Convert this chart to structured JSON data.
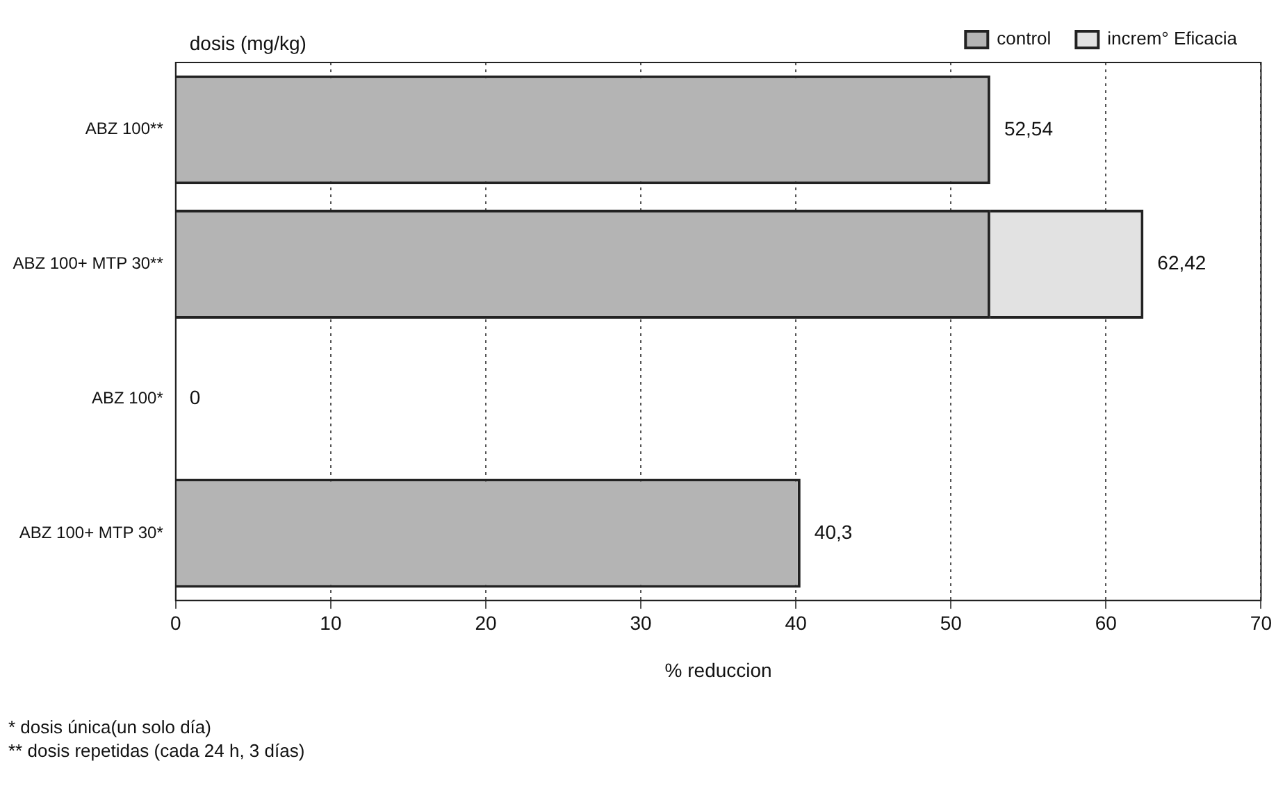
{
  "chart_data": {
    "type": "bar",
    "orientation": "horizontal",
    "stacked": true,
    "categories": [
      "ABZ 100**",
      "ABZ 100+ MTP 30**",
      "ABZ 100*",
      "ABZ 100+ MTP 30*"
    ],
    "series": [
      {
        "name": "control",
        "color": "#b4b4b4",
        "values": [
          52.54,
          52.54,
          0,
          40.3
        ]
      },
      {
        "name": "increm° Eficacia",
        "color": "#e2e2e2",
        "values": [
          0,
          9.88,
          0,
          0
        ]
      }
    ],
    "totals": [
      "52,54",
      "62,42",
      "0",
      "40,3"
    ],
    "xlim": [
      0,
      70
    ],
    "xticks": [
      0,
      10,
      20,
      30,
      40,
      50,
      60,
      70
    ],
    "xlabel": "% reduccion",
    "ylabel": "dosis (mg/kg)",
    "grid": "x",
    "legend": "top right",
    "annotations": [
      "* dosis única(un solo día)",
      "** dosis repetidas (cada 24 h, 3 días)"
    ]
  }
}
